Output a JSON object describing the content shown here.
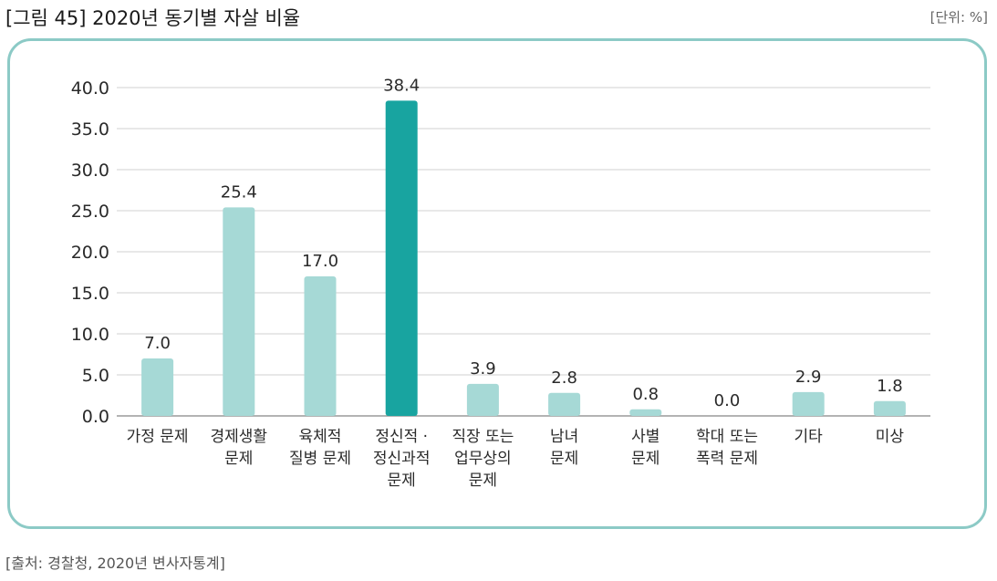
{
  "header": {
    "title": "[그림 45] 2020년 동기별 자살 비율",
    "unit": "[단위: %]"
  },
  "footer": {
    "source": "[출처: 경찰청, 2020년 변사자통계]"
  },
  "colors": {
    "bar": "#a6d9d6",
    "bar_highlight": "#18a4a0",
    "grid": "#d2d2d2",
    "panel_border": "#8ccac6"
  },
  "chart_data": {
    "type": "bar",
    "categories": [
      [
        "가정 문제"
      ],
      [
        "경제생활",
        "문제"
      ],
      [
        "육체적",
        "질병 문제"
      ],
      [
        "정신적 ·",
        "정신과적",
        "문제"
      ],
      [
        "직장 또는",
        "업무상의",
        "문제"
      ],
      [
        "남녀",
        "문제"
      ],
      [
        "사별",
        "문제"
      ],
      [
        "학대 또는",
        "폭력 문제"
      ],
      [
        "기타"
      ],
      [
        "미상"
      ]
    ],
    "values": [
      7.0,
      25.4,
      17.0,
      38.4,
      3.9,
      2.8,
      0.8,
      0.0,
      2.9,
      1.8
    ],
    "data_labels": [
      "7.0",
      "25.4",
      "17.0",
      "38.4",
      "3.9",
      "2.8",
      "0.8",
      "0.0",
      "2.9",
      "1.8"
    ],
    "highlight_index": 3,
    "ylim": [
      0,
      40
    ],
    "yticks": [
      "0.0",
      "5.0",
      "10.0",
      "15.0",
      "20.0",
      "25.0",
      "30.0",
      "35.0",
      "40.0"
    ],
    "grid": true,
    "legend": "none"
  }
}
